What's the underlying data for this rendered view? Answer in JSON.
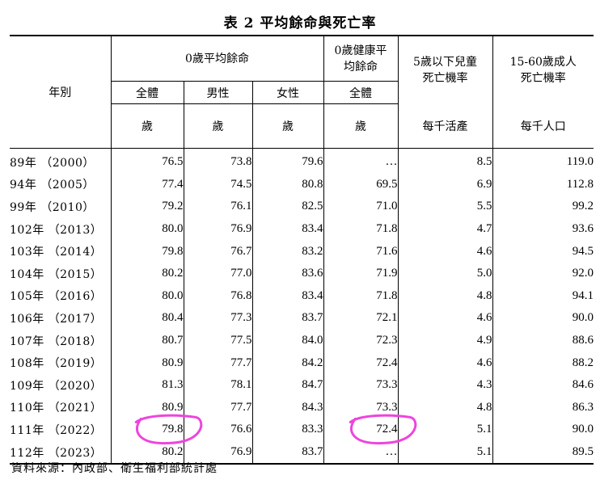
{
  "title": "表 2  平均餘命與死亡率",
  "header": {
    "year_col": "年別",
    "group_life": "0歲平均餘命",
    "group_healthy": "0歲健康平均餘命",
    "group_child": "5歲以下兒童死亡機率",
    "group_adult": "15-60歲成人死亡機率",
    "sub_total": "全體",
    "sub_male": "男性",
    "sub_female": "女性",
    "sub_healthy_total": "全體",
    "unit_years": "歲",
    "unit_child": "每千活產",
    "unit_adult": "每千人口"
  },
  "rows": [
    {
      "year": "89年 （2000）",
      "total": "76.5",
      "male": "73.8",
      "female": "79.6",
      "healthy": "…",
      "child": "8.5",
      "adult": "119.0"
    },
    {
      "year": "94年 （2005）",
      "total": "77.4",
      "male": "74.5",
      "female": "80.8",
      "healthy": "69.5",
      "child": "6.9",
      "adult": "112.8"
    },
    {
      "year": "99年 （2010）",
      "total": "79.2",
      "male": "76.1",
      "female": "82.5",
      "healthy": "71.0",
      "child": "5.5",
      "adult": "99.2"
    },
    {
      "year": "102年 （2013）",
      "total": "80.0",
      "male": "76.9",
      "female": "83.4",
      "healthy": "71.8",
      "child": "4.7",
      "adult": "93.6"
    },
    {
      "year": "103年 （2014）",
      "total": "79.8",
      "male": "76.7",
      "female": "83.2",
      "healthy": "71.6",
      "child": "4.6",
      "adult": "94.5"
    },
    {
      "year": "104年 （2015）",
      "total": "80.2",
      "male": "77.0",
      "female": "83.6",
      "healthy": "71.9",
      "child": "5.0",
      "adult": "92.0"
    },
    {
      "year": "105年 （2016）",
      "total": "80.0",
      "male": "76.8",
      "female": "83.4",
      "healthy": "71.8",
      "child": "4.8",
      "adult": "94.1"
    },
    {
      "year": "106年 （2017）",
      "total": "80.4",
      "male": "77.3",
      "female": "83.7",
      "healthy": "72.1",
      "child": "4.6",
      "adult": "90.0"
    },
    {
      "year": "107年 （2018）",
      "total": "80.7",
      "male": "77.5",
      "female": "84.0",
      "healthy": "72.3",
      "child": "4.9",
      "adult": "88.6"
    },
    {
      "year": "108年 （2019）",
      "total": "80.9",
      "male": "77.7",
      "female": "84.2",
      "healthy": "72.4",
      "child": "4.6",
      "adult": "88.2"
    },
    {
      "year": "109年 （2020）",
      "total": "81.3",
      "male": "78.1",
      "female": "84.7",
      "healthy": "73.3",
      "child": "4.3",
      "adult": "84.6"
    },
    {
      "year": "110年 （2021）",
      "total": "80.9",
      "male": "77.7",
      "female": "84.3",
      "healthy": "73.3",
      "child": "4.8",
      "adult": "86.3"
    },
    {
      "year": "111年 （2022）",
      "total": "79.8",
      "male": "76.6",
      "female": "83.3",
      "healthy": "72.4",
      "child": "5.1",
      "adult": "90.0"
    },
    {
      "year": "112年 （2023）",
      "total": "80.2",
      "male": "76.9",
      "female": "83.7",
      "healthy": "…",
      "child": "5.1",
      "adult": "89.5"
    }
  ],
  "highlight": {
    "color": "#ee44dd",
    "cells": [
      "rows.12.total",
      "rows.12.healthy"
    ]
  },
  "source": "資料來源：內政部、衛生福利部統計處"
}
